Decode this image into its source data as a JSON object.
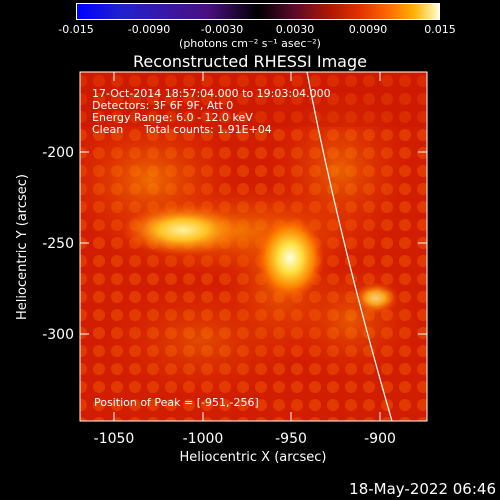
{
  "colorbar": {
    "ticks": [
      "-0.015",
      "-0.0090",
      "-0.0030",
      "0.0030",
      "0.0090",
      "0.015"
    ],
    "units": "(photons cm⁻² s⁻¹ asec⁻²)"
  },
  "plot": {
    "title": "Reconstructed RHESSI Image",
    "info": {
      "line1": "17-Oct-2014 18:57:04.000 to 19:03:04.000",
      "line2": "Detectors: 3F 6F 9F, Att 0",
      "line3": "Energy Range: 6.0 - 12.0 keV",
      "line4_a": "Clean",
      "line4_b": "Total counts: 1.91E+04"
    },
    "peak": "Position of Peak = [-951,-256]",
    "xlabel": "Heliocentric X (arcsec)",
    "ylabel": "Heliocentric Y (arcsec)",
    "xticks": [
      "-1050",
      "-1000",
      "-950",
      "-900"
    ],
    "yticks": [
      "-200",
      "-250",
      "-300"
    ]
  },
  "footer": {
    "date": "18-May-2022 06:46"
  },
  "colors": {
    "background": "#000000",
    "limb": "#ffffff",
    "text": "#ffffff"
  }
}
